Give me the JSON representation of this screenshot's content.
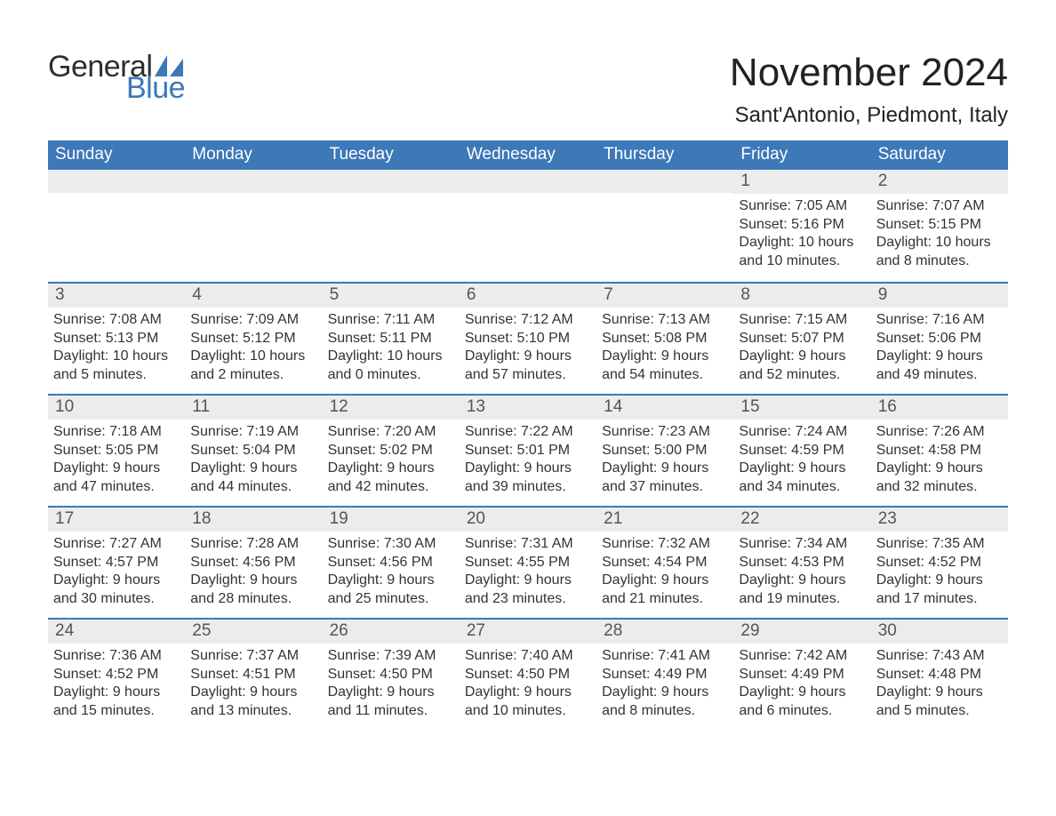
{
  "brand": {
    "word1": "General",
    "word2": "Blue",
    "word1_color": "#2e2e2e",
    "word2_color": "#3d78b8",
    "sail_color": "#3d78b8"
  },
  "header": {
    "month_title": "November 2024",
    "location": "Sant'Antonio, Piedmont, Italy"
  },
  "colors": {
    "header_bg": "#3d78b8",
    "header_text": "#ffffff",
    "daynum_bg": "#ececec",
    "daynum_text": "#555555",
    "row_divider": "#3d78b8",
    "body_text": "#333333",
    "background": "#ffffff"
  },
  "typography": {
    "title_fontsize": 44,
    "location_fontsize": 24,
    "dow_fontsize": 19,
    "daynum_fontsize": 19,
    "body_fontsize": 16,
    "font_family": "Segoe UI"
  },
  "days_of_week": [
    "Sunday",
    "Monday",
    "Tuesday",
    "Wednesday",
    "Thursday",
    "Friday",
    "Saturday"
  ],
  "weeks": [
    [
      {
        "empty": true
      },
      {
        "empty": true
      },
      {
        "empty": true
      },
      {
        "empty": true
      },
      {
        "empty": true
      },
      {
        "day": "1",
        "sunrise": "Sunrise: 7:05 AM",
        "sunset": "Sunset: 5:16 PM",
        "daylight1": "Daylight: 10 hours",
        "daylight2": "and 10 minutes."
      },
      {
        "day": "2",
        "sunrise": "Sunrise: 7:07 AM",
        "sunset": "Sunset: 5:15 PM",
        "daylight1": "Daylight: 10 hours",
        "daylight2": "and 8 minutes."
      }
    ],
    [
      {
        "day": "3",
        "sunrise": "Sunrise: 7:08 AM",
        "sunset": "Sunset: 5:13 PM",
        "daylight1": "Daylight: 10 hours",
        "daylight2": "and 5 minutes."
      },
      {
        "day": "4",
        "sunrise": "Sunrise: 7:09 AM",
        "sunset": "Sunset: 5:12 PM",
        "daylight1": "Daylight: 10 hours",
        "daylight2": "and 2 minutes."
      },
      {
        "day": "5",
        "sunrise": "Sunrise: 7:11 AM",
        "sunset": "Sunset: 5:11 PM",
        "daylight1": "Daylight: 10 hours",
        "daylight2": "and 0 minutes."
      },
      {
        "day": "6",
        "sunrise": "Sunrise: 7:12 AM",
        "sunset": "Sunset: 5:10 PM",
        "daylight1": "Daylight: 9 hours",
        "daylight2": "and 57 minutes."
      },
      {
        "day": "7",
        "sunrise": "Sunrise: 7:13 AM",
        "sunset": "Sunset: 5:08 PM",
        "daylight1": "Daylight: 9 hours",
        "daylight2": "and 54 minutes."
      },
      {
        "day": "8",
        "sunrise": "Sunrise: 7:15 AM",
        "sunset": "Sunset: 5:07 PM",
        "daylight1": "Daylight: 9 hours",
        "daylight2": "and 52 minutes."
      },
      {
        "day": "9",
        "sunrise": "Sunrise: 7:16 AM",
        "sunset": "Sunset: 5:06 PM",
        "daylight1": "Daylight: 9 hours",
        "daylight2": "and 49 minutes."
      }
    ],
    [
      {
        "day": "10",
        "sunrise": "Sunrise: 7:18 AM",
        "sunset": "Sunset: 5:05 PM",
        "daylight1": "Daylight: 9 hours",
        "daylight2": "and 47 minutes."
      },
      {
        "day": "11",
        "sunrise": "Sunrise: 7:19 AM",
        "sunset": "Sunset: 5:04 PM",
        "daylight1": "Daylight: 9 hours",
        "daylight2": "and 44 minutes."
      },
      {
        "day": "12",
        "sunrise": "Sunrise: 7:20 AM",
        "sunset": "Sunset: 5:02 PM",
        "daylight1": "Daylight: 9 hours",
        "daylight2": "and 42 minutes."
      },
      {
        "day": "13",
        "sunrise": "Sunrise: 7:22 AM",
        "sunset": "Sunset: 5:01 PM",
        "daylight1": "Daylight: 9 hours",
        "daylight2": "and 39 minutes."
      },
      {
        "day": "14",
        "sunrise": "Sunrise: 7:23 AM",
        "sunset": "Sunset: 5:00 PM",
        "daylight1": "Daylight: 9 hours",
        "daylight2": "and 37 minutes."
      },
      {
        "day": "15",
        "sunrise": "Sunrise: 7:24 AM",
        "sunset": "Sunset: 4:59 PM",
        "daylight1": "Daylight: 9 hours",
        "daylight2": "and 34 minutes."
      },
      {
        "day": "16",
        "sunrise": "Sunrise: 7:26 AM",
        "sunset": "Sunset: 4:58 PM",
        "daylight1": "Daylight: 9 hours",
        "daylight2": "and 32 minutes."
      }
    ],
    [
      {
        "day": "17",
        "sunrise": "Sunrise: 7:27 AM",
        "sunset": "Sunset: 4:57 PM",
        "daylight1": "Daylight: 9 hours",
        "daylight2": "and 30 minutes."
      },
      {
        "day": "18",
        "sunrise": "Sunrise: 7:28 AM",
        "sunset": "Sunset: 4:56 PM",
        "daylight1": "Daylight: 9 hours",
        "daylight2": "and 28 minutes."
      },
      {
        "day": "19",
        "sunrise": "Sunrise: 7:30 AM",
        "sunset": "Sunset: 4:56 PM",
        "daylight1": "Daylight: 9 hours",
        "daylight2": "and 25 minutes."
      },
      {
        "day": "20",
        "sunrise": "Sunrise: 7:31 AM",
        "sunset": "Sunset: 4:55 PM",
        "daylight1": "Daylight: 9 hours",
        "daylight2": "and 23 minutes."
      },
      {
        "day": "21",
        "sunrise": "Sunrise: 7:32 AM",
        "sunset": "Sunset: 4:54 PM",
        "daylight1": "Daylight: 9 hours",
        "daylight2": "and 21 minutes."
      },
      {
        "day": "22",
        "sunrise": "Sunrise: 7:34 AM",
        "sunset": "Sunset: 4:53 PM",
        "daylight1": "Daylight: 9 hours",
        "daylight2": "and 19 minutes."
      },
      {
        "day": "23",
        "sunrise": "Sunrise: 7:35 AM",
        "sunset": "Sunset: 4:52 PM",
        "daylight1": "Daylight: 9 hours",
        "daylight2": "and 17 minutes."
      }
    ],
    [
      {
        "day": "24",
        "sunrise": "Sunrise: 7:36 AM",
        "sunset": "Sunset: 4:52 PM",
        "daylight1": "Daylight: 9 hours",
        "daylight2": "and 15 minutes."
      },
      {
        "day": "25",
        "sunrise": "Sunrise: 7:37 AM",
        "sunset": "Sunset: 4:51 PM",
        "daylight1": "Daylight: 9 hours",
        "daylight2": "and 13 minutes."
      },
      {
        "day": "26",
        "sunrise": "Sunrise: 7:39 AM",
        "sunset": "Sunset: 4:50 PM",
        "daylight1": "Daylight: 9 hours",
        "daylight2": "and 11 minutes."
      },
      {
        "day": "27",
        "sunrise": "Sunrise: 7:40 AM",
        "sunset": "Sunset: 4:50 PM",
        "daylight1": "Daylight: 9 hours",
        "daylight2": "and 10 minutes."
      },
      {
        "day": "28",
        "sunrise": "Sunrise: 7:41 AM",
        "sunset": "Sunset: 4:49 PM",
        "daylight1": "Daylight: 9 hours",
        "daylight2": "and 8 minutes."
      },
      {
        "day": "29",
        "sunrise": "Sunrise: 7:42 AM",
        "sunset": "Sunset: 4:49 PM",
        "daylight1": "Daylight: 9 hours",
        "daylight2": "and 6 minutes."
      },
      {
        "day": "30",
        "sunrise": "Sunrise: 7:43 AM",
        "sunset": "Sunset: 4:48 PM",
        "daylight1": "Daylight: 9 hours",
        "daylight2": "and 5 minutes."
      }
    ]
  ]
}
